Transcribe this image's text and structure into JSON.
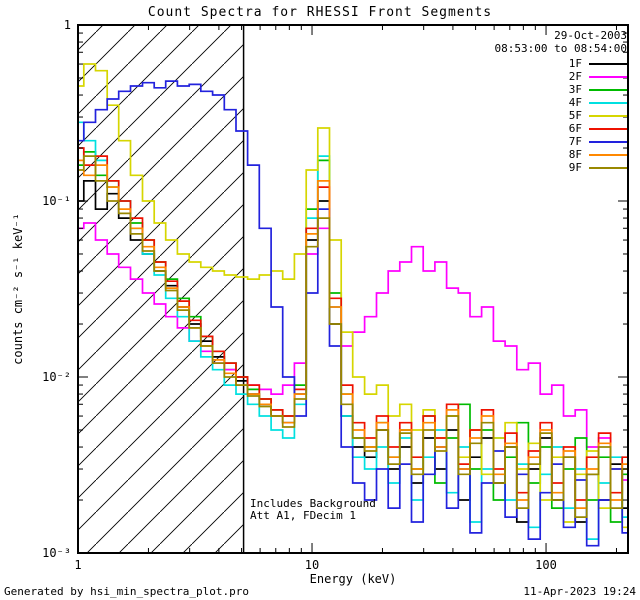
{
  "header": {
    "title": "Count Spectra for RHESSI Front Segments"
  },
  "annotations": {
    "date": "29-Oct-2003",
    "time_range": "08:53:00 to 08:54:00",
    "note_line1": "Includes Background",
    "note_line2": "Att A1, FDecim 1"
  },
  "footer": {
    "generated_by": "Generated by hsi_min_spectra_plot.pro",
    "timestamp": "11-Apr-2023 19:24"
  },
  "chart_data": {
    "type": "line",
    "title": "Count Spectra for RHESSI Front Segments",
    "xlabel": "Energy (keV)",
    "ylabel": "counts cm⁻² s⁻¹ keV⁻¹",
    "xscale": "log",
    "yscale": "log",
    "xlim": [
      1,
      224
    ],
    "ylim": [
      0.001,
      1
    ],
    "grid": false,
    "legend_position": "top_right_inside",
    "line_style": "histogram_steps",
    "x_tick_labels": [
      {
        "value": 1,
        "label": "1"
      },
      {
        "value": 10,
        "label": "10"
      },
      {
        "value": 100,
        "label": "100"
      }
    ],
    "y_tick_labels": [
      {
        "value": 1,
        "label": "1"
      },
      {
        "value": 0.1,
        "label": "10⁻¹"
      },
      {
        "value": 0.01,
        "label": "10⁻²"
      },
      {
        "value": 0.001,
        "label": "10⁻³"
      }
    ],
    "hatch_region": {
      "xmin": 1,
      "xmax": 5.1,
      "style": "diagonal-lines"
    },
    "x": [
      1.0,
      1.12,
      1.26,
      1.41,
      1.58,
      1.78,
      2.0,
      2.24,
      2.51,
      2.82,
      3.16,
      3.55,
      3.98,
      4.47,
      5.01,
      5.62,
      6.31,
      7.08,
      7.94,
      8.91,
      10.0,
      11.2,
      12.6,
      14.1,
      15.8,
      17.8,
      20.0,
      22.4,
      25.1,
      28.2,
      31.6,
      35.5,
      39.8,
      44.7,
      50.1,
      56.2,
      63.1,
      70.8,
      79.4,
      89.1,
      100.0,
      112.0,
      126.0,
      141.0,
      158.0,
      178.0,
      200.0,
      224.0
    ],
    "series": [
      {
        "name": "1F",
        "color": "#000000",
        "values": [
          0.1,
          0.13,
          0.09,
          0.11,
          0.08,
          0.06,
          0.05,
          0.04,
          0.033,
          0.025,
          0.02,
          0.016,
          0.013,
          0.011,
          0.0095,
          0.008,
          0.007,
          0.006,
          0.0055,
          0.008,
          0.06,
          0.1,
          0.02,
          0.006,
          0.004,
          0.0035,
          0.005,
          0.003,
          0.004,
          0.0025,
          0.0045,
          0.003,
          0.005,
          0.002,
          0.0035,
          0.0045,
          0.0025,
          0.004,
          0.0015,
          0.003,
          0.0045,
          0.002,
          0.0035,
          0.0015,
          0.0028,
          0.002,
          0.0032,
          0.0018
        ]
      },
      {
        "name": "2F",
        "color": "#FF00FF",
        "values": [
          0.07,
          0.075,
          0.06,
          0.05,
          0.042,
          0.036,
          0.03,
          0.026,
          0.022,
          0.019,
          0.016,
          0.014,
          0.012,
          0.011,
          0.01,
          0.009,
          0.0085,
          0.008,
          0.009,
          0.012,
          0.05,
          0.07,
          0.025,
          0.015,
          0.018,
          0.022,
          0.03,
          0.04,
          0.045,
          0.055,
          0.04,
          0.045,
          0.032,
          0.03,
          0.022,
          0.025,
          0.016,
          0.015,
          0.011,
          0.012,
          0.008,
          0.009,
          0.006,
          0.0065,
          0.004,
          0.0045,
          0.003,
          0.0026
        ]
      },
      {
        "name": "3F",
        "color": "#00BB00",
        "values": [
          0.16,
          0.19,
          0.14,
          0.12,
          0.1,
          0.075,
          0.06,
          0.045,
          0.036,
          0.028,
          0.022,
          0.017,
          0.014,
          0.012,
          0.01,
          0.0085,
          0.0075,
          0.0065,
          0.006,
          0.009,
          0.09,
          0.17,
          0.03,
          0.008,
          0.0045,
          0.004,
          0.0055,
          0.0035,
          0.005,
          0.003,
          0.006,
          0.0025,
          0.0045,
          0.007,
          0.003,
          0.005,
          0.002,
          0.0035,
          0.0055,
          0.0025,
          0.004,
          0.0018,
          0.003,
          0.0045,
          0.002,
          0.0035,
          0.0015,
          0.0028
        ]
      },
      {
        "name": "4F",
        "color": "#00E0E0",
        "values": [
          0.28,
          0.22,
          0.17,
          0.13,
          0.1,
          0.07,
          0.05,
          0.038,
          0.028,
          0.022,
          0.016,
          0.013,
          0.011,
          0.009,
          0.008,
          0.007,
          0.006,
          0.005,
          0.0045,
          0.007,
          0.08,
          0.18,
          0.025,
          0.006,
          0.0035,
          0.003,
          0.004,
          0.0025,
          0.0045,
          0.002,
          0.0035,
          0.005,
          0.0022,
          0.004,
          0.0015,
          0.003,
          0.0045,
          0.002,
          0.0032,
          0.0014,
          0.0028,
          0.004,
          0.0018,
          0.003,
          0.0012,
          0.0025,
          0.0035,
          0.0016
        ]
      },
      {
        "name": "5F",
        "color": "#D6D600",
        "values": [
          0.45,
          0.6,
          0.55,
          0.35,
          0.22,
          0.14,
          0.1,
          0.075,
          0.06,
          0.05,
          0.045,
          0.042,
          0.04,
          0.038,
          0.037,
          0.036,
          0.038,
          0.04,
          0.036,
          0.05,
          0.15,
          0.26,
          0.06,
          0.018,
          0.01,
          0.008,
          0.009,
          0.006,
          0.007,
          0.005,
          0.0065,
          0.0045,
          0.006,
          0.0035,
          0.005,
          0.0028,
          0.0045,
          0.0055,
          0.003,
          0.0042,
          0.002,
          0.0035,
          0.0015,
          0.0028,
          0.0038,
          0.0018,
          0.003,
          0.0014
        ]
      },
      {
        "name": "6F",
        "color": "#EE1100",
        "values": [
          0.2,
          0.16,
          0.18,
          0.13,
          0.1,
          0.08,
          0.06,
          0.045,
          0.035,
          0.027,
          0.021,
          0.017,
          0.014,
          0.012,
          0.01,
          0.009,
          0.0075,
          0.0065,
          0.006,
          0.0085,
          0.07,
          0.12,
          0.028,
          0.009,
          0.0055,
          0.0045,
          0.006,
          0.004,
          0.0055,
          0.0035,
          0.006,
          0.0045,
          0.007,
          0.0032,
          0.005,
          0.0065,
          0.003,
          0.0048,
          0.0022,
          0.0038,
          0.0055,
          0.0025,
          0.004,
          0.002,
          0.0035,
          0.0048,
          0.0022,
          0.0035
        ]
      },
      {
        "name": "7F",
        "color": "#2222DD",
        "values": [
          0.22,
          0.28,
          0.33,
          0.38,
          0.42,
          0.45,
          0.47,
          0.44,
          0.48,
          0.45,
          0.46,
          0.42,
          0.4,
          0.33,
          0.25,
          0.16,
          0.07,
          0.025,
          0.01,
          0.006,
          0.03,
          0.09,
          0.015,
          0.004,
          0.0025,
          0.002,
          0.003,
          0.0018,
          0.0032,
          0.0015,
          0.0028,
          0.004,
          0.0018,
          0.003,
          0.0013,
          0.0025,
          0.0038,
          0.0016,
          0.0028,
          0.0012,
          0.0022,
          0.0032,
          0.0014,
          0.0026,
          0.0011,
          0.002,
          0.003,
          0.0013
        ]
      },
      {
        "name": "8F",
        "color": "#FF8800",
        "values": [
          0.17,
          0.14,
          0.16,
          0.12,
          0.09,
          0.07,
          0.055,
          0.042,
          0.032,
          0.025,
          0.019,
          0.015,
          0.0125,
          0.0105,
          0.009,
          0.008,
          0.007,
          0.006,
          0.0055,
          0.008,
          0.065,
          0.13,
          0.025,
          0.008,
          0.005,
          0.004,
          0.0055,
          0.0035,
          0.005,
          0.003,
          0.0055,
          0.004,
          0.0065,
          0.003,
          0.0045,
          0.006,
          0.0028,
          0.0042,
          0.002,
          0.0035,
          0.005,
          0.0022,
          0.0038,
          0.0018,
          0.003,
          0.0042,
          0.002,
          0.0032
        ]
      },
      {
        "name": "9F",
        "color": "#998800",
        "values": [
          0.15,
          0.18,
          0.13,
          0.1,
          0.085,
          0.065,
          0.052,
          0.04,
          0.031,
          0.024,
          0.019,
          0.015,
          0.012,
          0.01,
          0.009,
          0.0078,
          0.0068,
          0.006,
          0.0052,
          0.0075,
          0.055,
          0.08,
          0.02,
          0.007,
          0.0045,
          0.0038,
          0.005,
          0.0032,
          0.0048,
          0.0028,
          0.005,
          0.0038,
          0.006,
          0.0028,
          0.0042,
          0.0055,
          0.0025,
          0.004,
          0.0018,
          0.0032,
          0.0048,
          0.002,
          0.0035,
          0.0016,
          0.0028,
          0.004,
          0.0018,
          0.003
        ]
      }
    ]
  }
}
